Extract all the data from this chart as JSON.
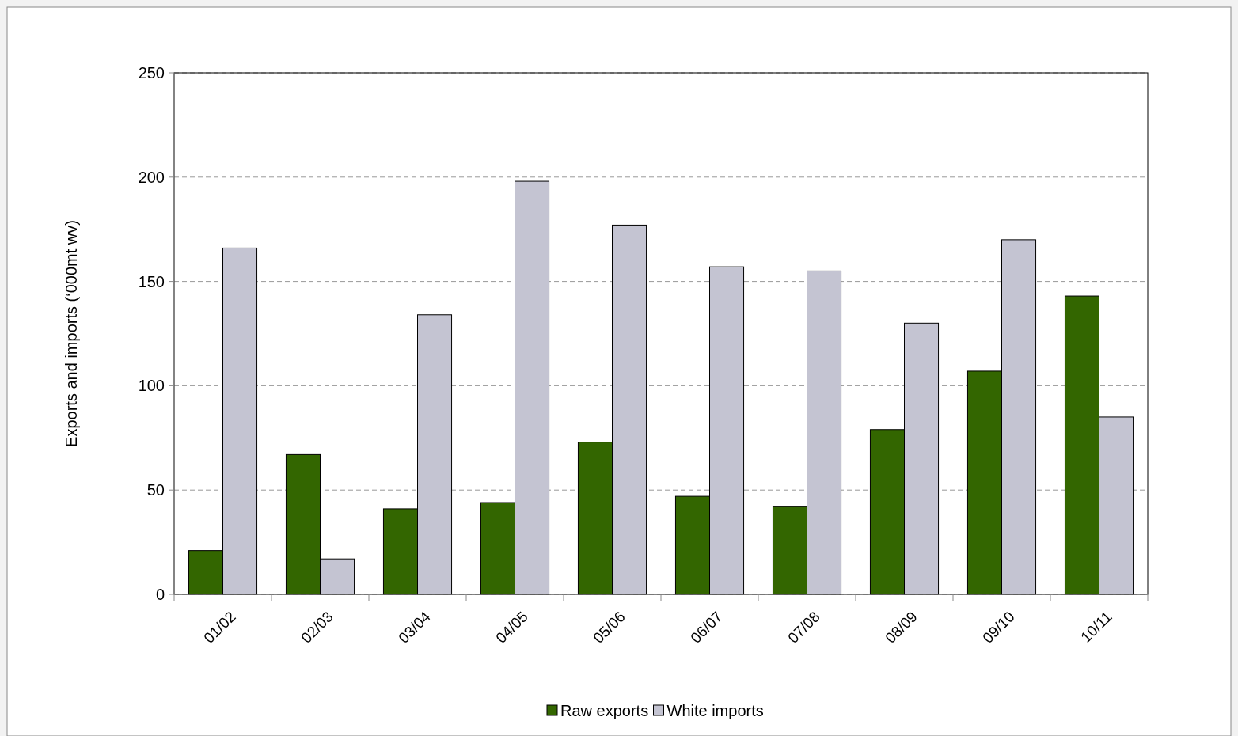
{
  "chart_data": {
    "type": "bar",
    "ylabel": "Exports and imports (‘000mt wv)",
    "categories": [
      "01/02",
      "02/03",
      "03/04",
      "04/05",
      "05/06",
      "06/07",
      "07/08",
      "08/09",
      "09/10",
      "10/11"
    ],
    "series": [
      {
        "name": "Raw exports",
        "color": "#336600",
        "values": [
          21,
          67,
          41,
          44,
          73,
          47,
          42,
          79,
          107,
          143
        ]
      },
      {
        "name": "White imports",
        "color": "#c4c4d2",
        "values": [
          166,
          17,
          134,
          198,
          177,
          157,
          155,
          130,
          170,
          85
        ]
      }
    ],
    "ylim": [
      0,
      250
    ],
    "yticks": [
      0,
      50,
      100,
      150,
      200,
      250
    ],
    "grid": "y",
    "legend": "bottom"
  }
}
